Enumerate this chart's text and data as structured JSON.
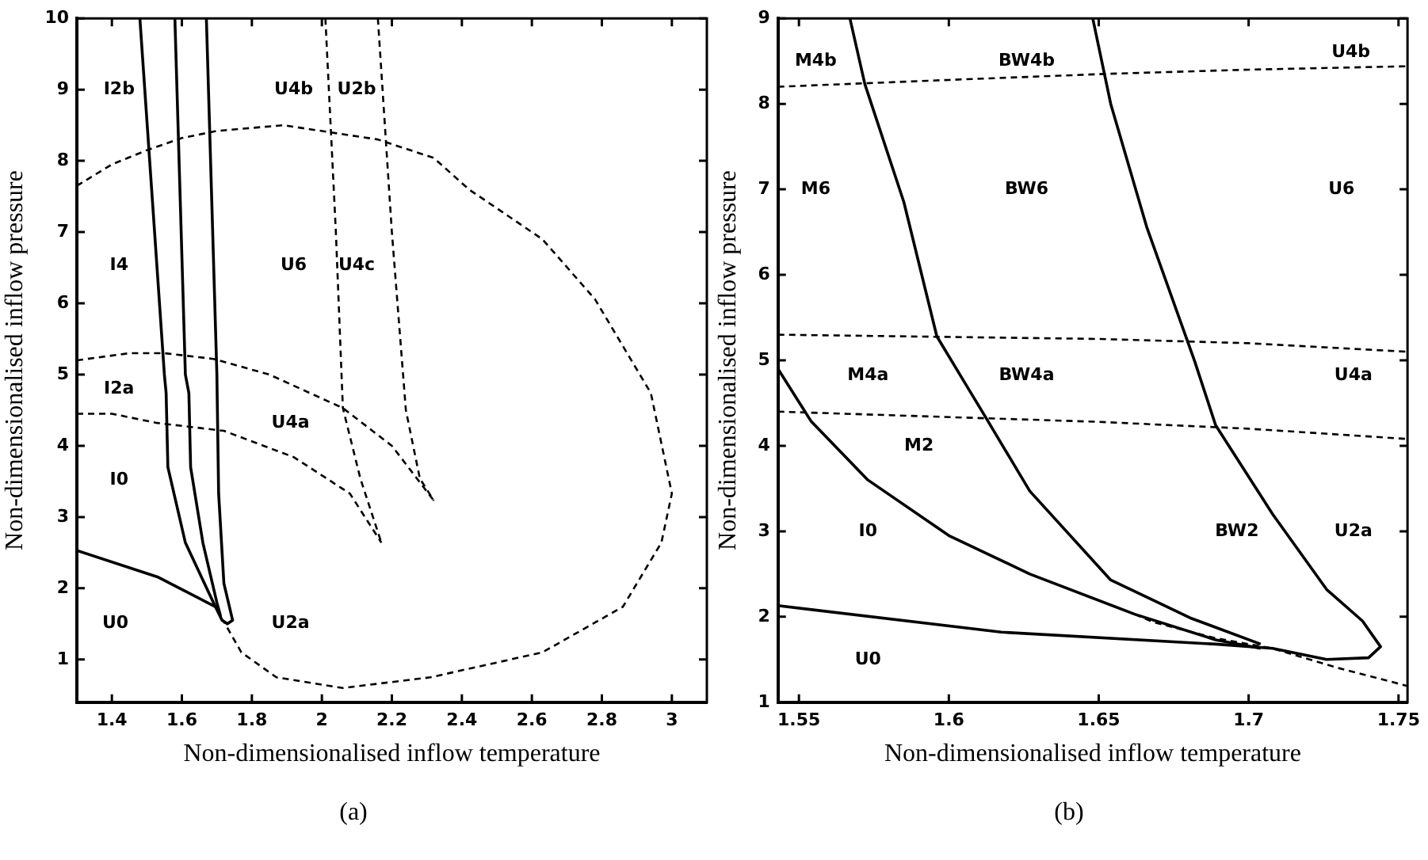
{
  "chart_data": [
    {
      "type": "line",
      "title": "(a)",
      "xlabel": "Non-dimensionalised inflow temperature",
      "ylabel": "Non-dimensionalised inflow pressure",
      "xlim": [
        1.3,
        3.1
      ],
      "ylim": [
        0.4,
        10
      ],
      "xticks": [
        1.4,
        1.6,
        1.8,
        2,
        2.2,
        2.4,
        2.6,
        2.8,
        3
      ],
      "yticks": [
        1,
        2,
        3,
        4,
        5,
        6,
        7,
        8,
        9,
        10
      ],
      "grid": false,
      "legend": false,
      "marker": "none",
      "series": [
        {
          "color": "#000000",
          "line_style": "dashed",
          "x": [
            1.3,
            1.4,
            1.5,
            1.6,
            1.7,
            1.89,
            2.16,
            2.32,
            2.42,
            2.63,
            2.78,
            2.94,
            3.0,
            2.97,
            2.86,
            2.63,
            2.31,
            2.06,
            1.87,
            1.77,
            1.72
          ],
          "values": [
            7.65,
            7.95,
            8.15,
            8.32,
            8.42,
            8.5,
            8.3,
            8.04,
            7.6,
            6.9,
            6.06,
            4.74,
            3.33,
            2.64,
            1.74,
            1.1,
            0.75,
            0.6,
            0.75,
            1.1,
            1.53
          ]
        },
        {
          "color": "#000000",
          "line_style": "dashed",
          "x": [
            1.3,
            1.45,
            1.55,
            1.69,
            1.85,
            2.06,
            2.2,
            2.32
          ],
          "values": [
            5.2,
            5.3,
            5.3,
            5.22,
            5.0,
            4.53,
            4.0,
            3.23
          ]
        },
        {
          "color": "#000000",
          "line_style": "dashed",
          "x": [
            2.16,
            2.2,
            2.24,
            2.28,
            2.32
          ],
          "values": [
            10,
            7,
            4.5,
            3.54,
            3.23
          ]
        },
        {
          "color": "#000000",
          "line_style": "dashed",
          "x": [
            1.3,
            1.4,
            1.53,
            1.72,
            1.92,
            2.08,
            2.17
          ],
          "values": [
            4.45,
            4.45,
            4.32,
            4.21,
            3.84,
            3.33,
            2.64
          ]
        },
        {
          "color": "#000000",
          "line_style": "dashed",
          "x": [
            2.01,
            2.04,
            2.06,
            2.11,
            2.17
          ],
          "values": [
            10,
            7,
            4.53,
            3.54,
            2.64
          ]
        },
        {
          "color": "#000000",
          "line_style": "solid",
          "x": [
            1.3,
            1.53,
            1.7,
            1.71,
            1.7,
            1.66,
            1.625,
            1.62,
            1.61,
            1.58
          ],
          "values": [
            2.53,
            2.16,
            1.73,
            1.62,
            1.8,
            2.64,
            3.7,
            4.74,
            5,
            10
          ]
        },
        {
          "color": "#000000",
          "line_style": "solid",
          "x": [
            1.48,
            1.55,
            1.555,
            1.56,
            1.61,
            1.69,
            1.715,
            1.73,
            1.745,
            1.72,
            1.705,
            1.7,
            1.67
          ],
          "values": [
            10,
            5,
            4.74,
            3.7,
            2.64,
            1.8,
            1.55,
            1.5,
            1.55,
            2.07,
            3.33,
            5,
            10
          ]
        }
      ],
      "annotations": [
        "I2b",
        "U4b",
        "U2b",
        "I4",
        "U6",
        "U4c",
        "I2a",
        "U4a",
        "I0",
        "U0",
        "U2a"
      ]
    },
    {
      "type": "line",
      "title": "(b)",
      "xlabel": "Non-dimensionalised inflow temperature",
      "ylabel": "Non-dimensionalised inflow pressure",
      "xlim": [
        1.543,
        1.753
      ],
      "ylim": [
        1,
        9
      ],
      "xticks": [
        1.55,
        1.6,
        1.65,
        1.7,
        1.75
      ],
      "yticks": [
        1,
        2,
        3,
        4,
        5,
        6,
        7,
        8,
        9
      ],
      "grid": false,
      "legend": false,
      "marker": "none",
      "series": [
        {
          "color": "#000000",
          "line_style": "dashed",
          "x": [
            1.543,
            1.6,
            1.652,
            1.7,
            1.753
          ],
          "values": [
            8.2,
            8.28,
            8.35,
            8.4,
            8.44
          ]
        },
        {
          "color": "#000000",
          "line_style": "dashed",
          "x": [
            1.543,
            1.65,
            1.7,
            1.753
          ],
          "values": [
            5.3,
            5.25,
            5.2,
            5.1
          ]
        },
        {
          "color": "#000000",
          "line_style": "dashed",
          "x": [
            1.543,
            1.65,
            1.7,
            1.753
          ],
          "values": [
            4.4,
            4.28,
            4.2,
            4.08
          ]
        },
        {
          "color": "#000000",
          "line_style": "dashed",
          "x": [
            1.662,
            1.668,
            1.689,
            1.708,
            1.73,
            1.753
          ],
          "values": [
            2.03,
            1.94,
            1.75,
            1.63,
            1.4,
            1.19
          ]
        },
        {
          "color": "#000000",
          "line_style": "solid",
          "x": [
            1.543,
            1.6175,
            1.689,
            1.708,
            1.726,
            1.74,
            1.744,
            1.738,
            1.726,
            1.708,
            1.689,
            1.682,
            1.666,
            1.654,
            1.648
          ],
          "values": [
            2.13,
            1.82,
            1.68,
            1.63,
            1.5,
            1.52,
            1.65,
            1.95,
            2.32,
            3.2,
            4.24,
            4.99,
            6.56,
            8.0,
            9
          ]
        },
        {
          "color": "#000000",
          "line_style": "solid",
          "x": [
            1.567,
            1.572,
            1.585,
            1.596,
            1.607,
            1.612,
            1.627,
            1.654,
            1.681,
            1.704
          ],
          "values": [
            9,
            8.23,
            6.85,
            5.28,
            4.64,
            4.35,
            3.47,
            2.43,
            1.98,
            1.68
          ]
        },
        {
          "color": "#000000",
          "line_style": "solid",
          "x": [
            1.543,
            1.554,
            1.573,
            1.6,
            1.627,
            1.662,
            1.689,
            1.704
          ],
          "values": [
            4.9,
            4.29,
            3.6,
            2.95,
            2.5,
            2.03,
            1.73,
            1.63
          ]
        }
      ],
      "annotations": [
        "M4b",
        "BW4b",
        "U4b",
        "M6",
        "BW6",
        "U6",
        "M4a",
        "BW4a",
        "U4a",
        "M2",
        "I0",
        "BW2",
        "U2a",
        "U0"
      ]
    }
  ]
}
